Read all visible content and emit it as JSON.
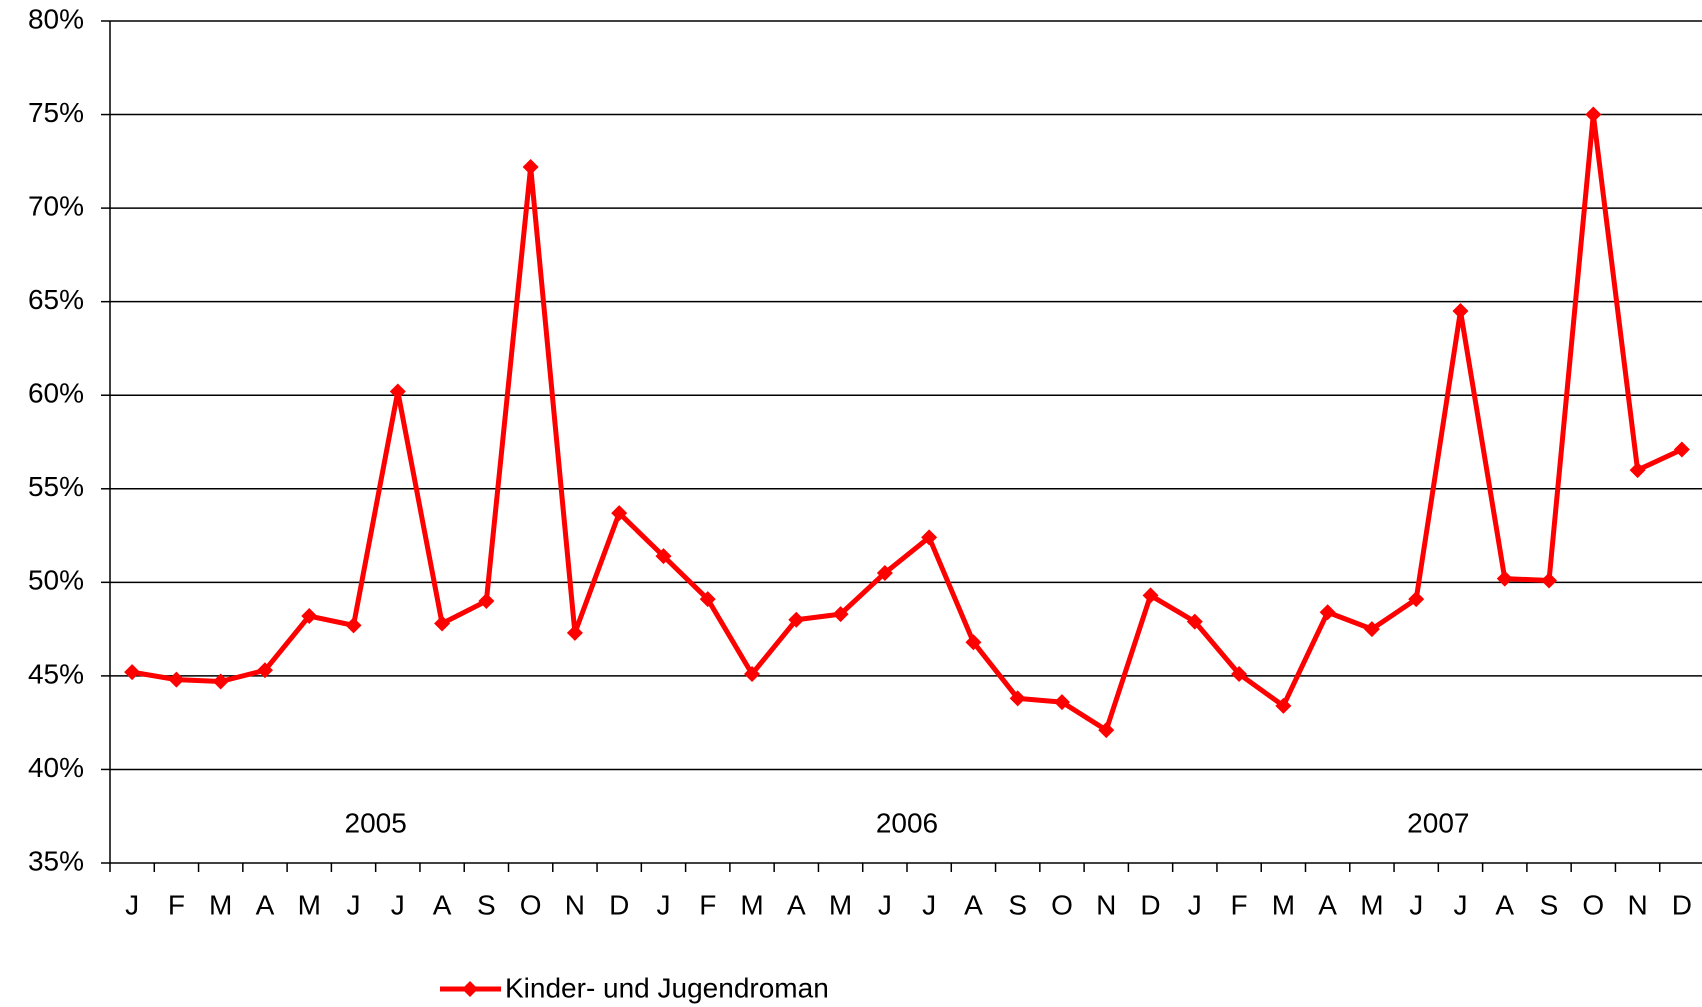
{
  "chart_data": {
    "type": "line",
    "categories": [
      "J",
      "F",
      "M",
      "A",
      "M",
      "J",
      "J",
      "A",
      "S",
      "O",
      "N",
      "D",
      "J",
      "F",
      "M",
      "A",
      "M",
      "J",
      "J",
      "A",
      "S",
      "O",
      "N",
      "D",
      "J",
      "F",
      "M",
      "A",
      "M",
      "J",
      "J",
      "A",
      "S",
      "O",
      "N",
      "D"
    ],
    "year_labels": [
      "2005",
      "2006",
      "2007"
    ],
    "series": [
      {
        "name": "Kinder- und Jugendroman",
        "color": "#ff0000",
        "values": [
          45.2,
          44.8,
          44.7,
          45.3,
          48.2,
          47.7,
          60.2,
          47.8,
          49.0,
          72.2,
          47.3,
          53.7,
          51.4,
          49.1,
          45.1,
          48.0,
          48.3,
          50.5,
          52.4,
          46.8,
          43.8,
          43.6,
          42.1,
          49.3,
          47.9,
          45.1,
          43.4,
          48.4,
          47.5,
          49.1,
          64.5,
          50.2,
          50.1,
          75.0,
          56.0,
          57.1
        ]
      }
    ],
    "ylim": [
      35,
      80
    ],
    "yticks": [
      {
        "value": 35,
        "label": "35%"
      },
      {
        "value": 40,
        "label": "40%"
      },
      {
        "value": 45,
        "label": "45%"
      },
      {
        "value": 50,
        "label": "50%"
      },
      {
        "value": 55,
        "label": "55%"
      },
      {
        "value": 60,
        "label": "60%"
      },
      {
        "value": 65,
        "label": "65%"
      },
      {
        "value": 70,
        "label": "70%"
      },
      {
        "value": 75,
        "label": "75%"
      },
      {
        "value": 80,
        "label": "80%"
      }
    ],
    "grid": true
  }
}
